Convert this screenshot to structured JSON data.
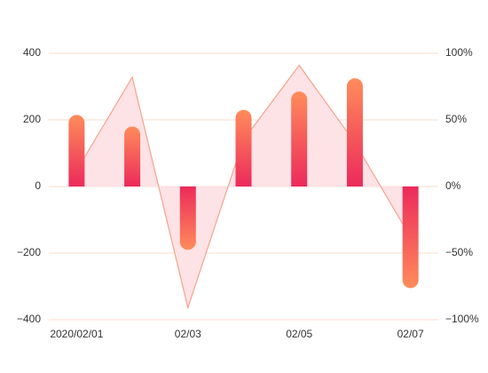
{
  "chart_data": {
    "type": "bar-line",
    "categories": [
      "2020/02/01",
      null,
      "02/03",
      null,
      "02/05",
      null,
      "02/07"
    ],
    "series": [
      {
        "type": "bar",
        "color": [
          "#ff8c5b",
          "#ec2a5b"
        ],
        "values": [
          215,
          180,
          -190,
          230,
          285,
          325,
          -305
        ]
      },
      {
        "type": "line",
        "axis": "y2",
        "color": "#f6a38c",
        "fill": "#fde2e6",
        "values": [
          12,
          82,
          -91,
          35,
          91,
          33,
          -38
        ]
      }
    ],
    "ylim": [
      -400,
      400
    ],
    "yticks": [
      {
        "value": -400,
        "label": "−400"
      },
      {
        "value": -200,
        "label": "−200"
      },
      0,
      200,
      400
    ],
    "y2lim": [
      -100,
      100
    ],
    "y2ticks": [
      {
        "value": -100,
        "label": "−100%"
      },
      {
        "value": -50,
        "label": "−50%"
      },
      {
        "value": 0,
        "label": "0%"
      },
      {
        "value": 50,
        "label": "50%"
      },
      {
        "value": 100,
        "label": "100%"
      }
    ],
    "grid": true
  }
}
